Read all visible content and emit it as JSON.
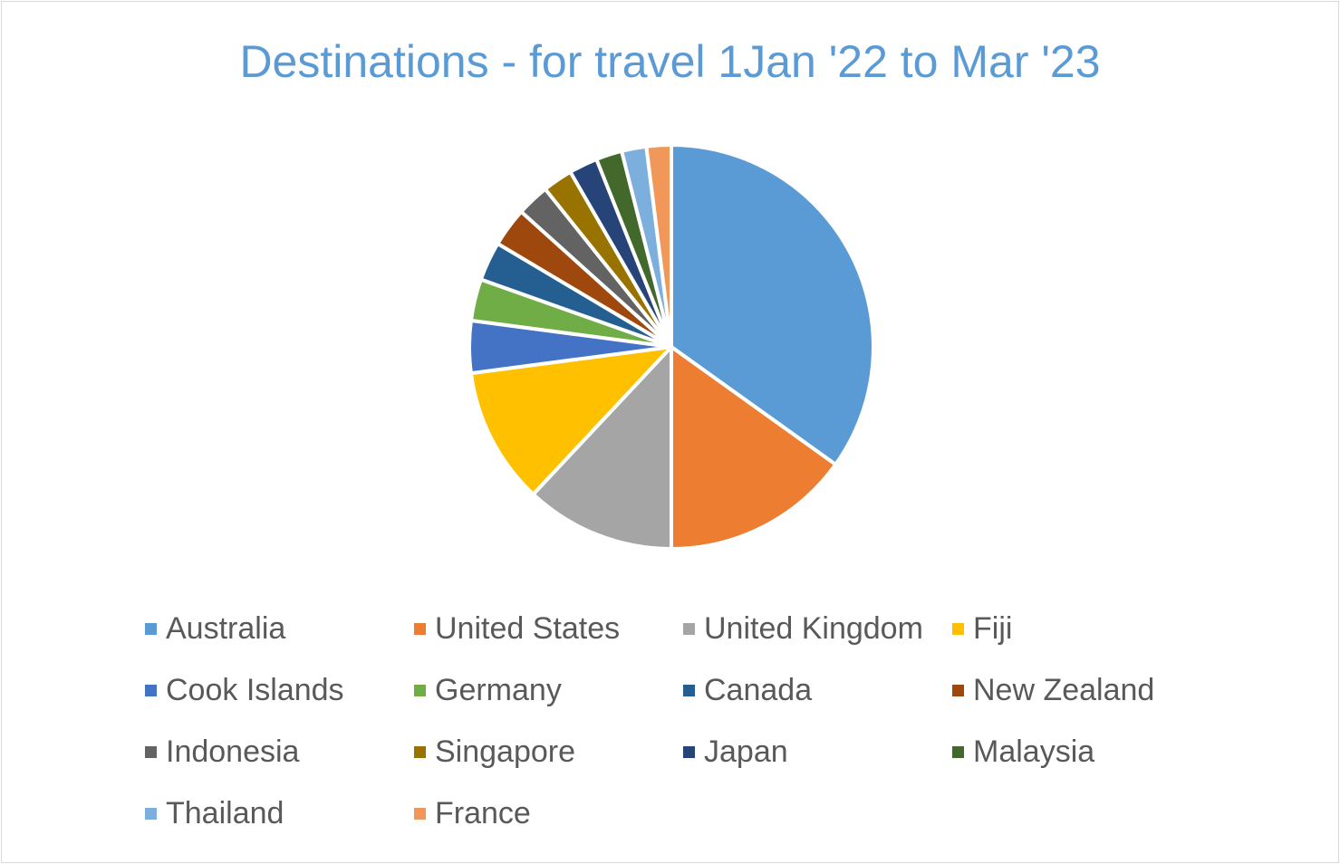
{
  "chart_data": {
    "type": "pie",
    "title": "Destinations - for travel 1Jan '22 to Mar '23",
    "legend_position": "bottom",
    "categories": [
      "Australia",
      "United States",
      "United Kingdom",
      "Fiji",
      "Cook Islands",
      "Germany",
      "Canada",
      "New Zealand",
      "Indonesia",
      "Singapore",
      "Japan",
      "Malaysia",
      "Thailand",
      "France"
    ],
    "values": [
      33.5,
      14.5,
      11.5,
      10.5,
      4.0,
      3.2,
      3.0,
      3.0,
      2.5,
      2.3,
      2.2,
      2.0,
      1.9,
      1.9
    ],
    "value_unit": "percent",
    "colors": [
      "#5b9bd5",
      "#ed7d31",
      "#a5a5a5",
      "#ffc000",
      "#4472c4",
      "#70ad47",
      "#255e91",
      "#9e480e",
      "#636363",
      "#997300",
      "#264478",
      "#43682b",
      "#7cafdd",
      "#f1975a"
    ]
  }
}
